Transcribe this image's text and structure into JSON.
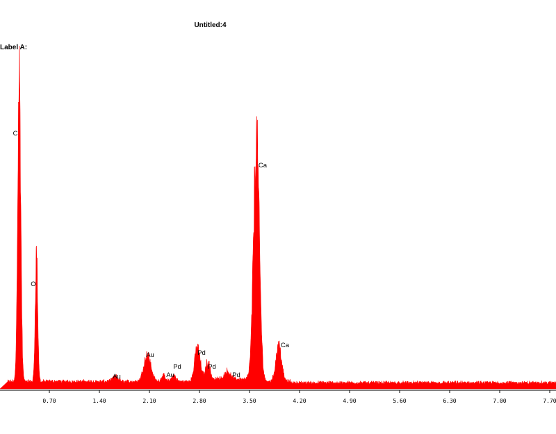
{
  "window": {
    "title": "Untitled:4",
    "label_a": "Label A:"
  },
  "chart_data": {
    "type": "area",
    "title": "Untitled:4",
    "xlabel": "",
    "ylabel": "",
    "xlim": [
      0.0,
      8.0
    ],
    "ylim": [
      0,
      100
    ],
    "grid": false,
    "color": "#ff0000",
    "x_ticks": [
      "0.70",
      "1.40",
      "2.10",
      "2.80",
      "3.50",
      "4.20",
      "4.90",
      "5.60",
      "6.30",
      "7.00",
      "7.70"
    ],
    "x_tick_values": [
      0.7,
      1.4,
      2.1,
      2.8,
      3.5,
      4.2,
      4.9,
      5.6,
      6.3,
      7.0,
      7.7
    ],
    "baseline_level": 1.5,
    "peaks": [
      {
        "element": "C",
        "energy": 0.277,
        "height": 97,
        "width": 0.022,
        "label": "C"
      },
      {
        "element": "O",
        "energy": 0.525,
        "height": 40,
        "width": 0.018,
        "label": "O"
      },
      {
        "element": "Au",
        "energy": 1.66,
        "height": 1.5,
        "width": 0.04,
        "label": "Au"
      },
      {
        "element": "Au",
        "energy": 2.12,
        "height": 8.5,
        "width": 0.05,
        "label": "Au"
      },
      {
        "element": "Au",
        "energy": 2.35,
        "height": 1.8,
        "width": 0.03,
        "label": "Au"
      },
      {
        "element": "Pd",
        "energy": 2.5,
        "height": 2.0,
        "width": 0.03,
        "label": "Pd"
      },
      {
        "element": "Pd",
        "energy": 2.84,
        "height": 10,
        "width": 0.04,
        "label": "Pd"
      },
      {
        "element": "Pd",
        "energy": 2.99,
        "height": 5.5,
        "width": 0.03,
        "label": "Pd"
      },
      {
        "element": "Pd",
        "energy": 3.27,
        "height": 2.5,
        "width": 0.04,
        "label": "Pd"
      },
      {
        "element": "Ca",
        "energy": 3.69,
        "height": 76,
        "width": 0.042,
        "label": "Ca"
      },
      {
        "element": "Ca",
        "energy": 4.01,
        "height": 11.5,
        "width": 0.04,
        "label": "Ca"
      }
    ],
    "annotations": [
      "C",
      "O",
      "Au",
      "Au",
      "Au",
      "Pd",
      "Pd",
      "Pd",
      "Pd",
      "Ca",
      "Ca"
    ]
  }
}
